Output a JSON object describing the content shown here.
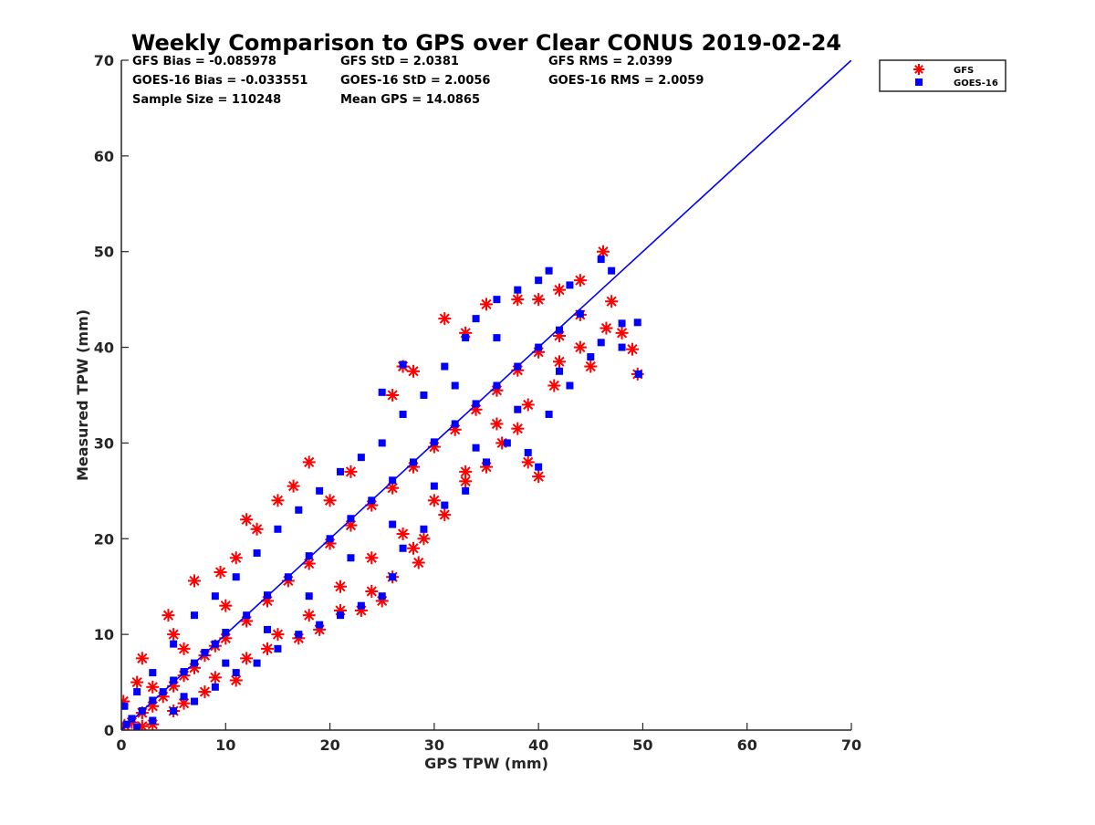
{
  "chart_data": {
    "type": "scatter",
    "title": "Weekly Comparison to GPS over Clear CONUS 2019-02-24",
    "xlabel": "GPS TPW (mm)",
    "ylabel": "Measured TPW (mm)",
    "xlim": [
      0,
      70
    ],
    "ylim": [
      0,
      70
    ],
    "xticks": [
      0,
      10,
      20,
      30,
      40,
      50,
      60,
      70
    ],
    "yticks": [
      0,
      10,
      20,
      30,
      40,
      50,
      60,
      70
    ],
    "grid": false,
    "legend_position": "top-right outside",
    "stats_rows": [
      [
        "GFS Bias = -0.085978",
        "GFS StD = 2.0381",
        "GFS RMS = 2.0399"
      ],
      [
        "GOES-16 Bias = -0.033551",
        "GOES-16 StD = 2.0056",
        "GOES-16 RMS = 2.0059"
      ],
      [
        "Sample Size = 110248",
        "Mean GPS = 14.0865",
        ""
      ]
    ],
    "series": [
      {
        "name": "GFS",
        "marker": "asterisk",
        "color": "#ff0000",
        "points": [
          [
            0.3,
            0.5
          ],
          [
            1,
            0.8
          ],
          [
            2,
            1.8
          ],
          [
            3,
            2.5
          ],
          [
            4,
            3.5
          ],
          [
            5,
            4.6
          ],
          [
            6,
            5.7
          ],
          [
            7,
            6.5
          ],
          [
            8,
            7.8
          ],
          [
            9,
            8.8
          ],
          [
            10,
            9.6
          ],
          [
            12,
            11.4
          ],
          [
            14,
            13.5
          ],
          [
            16,
            15.6
          ],
          [
            18,
            17.4
          ],
          [
            20,
            19.5
          ],
          [
            22,
            21.4
          ],
          [
            24,
            23.5
          ],
          [
            26,
            25.3
          ],
          [
            28,
            27.5
          ],
          [
            30,
            29.6
          ],
          [
            32,
            31.4
          ],
          [
            34,
            33.5
          ],
          [
            36,
            35.5
          ],
          [
            38,
            37.6
          ],
          [
            40,
            39.5
          ],
          [
            42,
            41.2
          ],
          [
            44,
            43.4
          ],
          [
            0.2,
            3
          ],
          [
            1.5,
            5
          ],
          [
            2,
            7.5
          ],
          [
            4.5,
            12
          ],
          [
            5,
            10
          ],
          [
            7,
            15.6
          ],
          [
            9.5,
            16.5
          ],
          [
            11,
            18
          ],
          [
            12,
            22
          ],
          [
            13,
            21
          ],
          [
            15,
            24
          ],
          [
            16.5,
            25.5
          ],
          [
            18,
            28
          ],
          [
            26,
            35
          ],
          [
            27,
            38
          ],
          [
            28,
            37.5
          ],
          [
            31,
            43
          ],
          [
            33,
            41.5
          ],
          [
            35,
            44.5
          ],
          [
            38,
            45
          ],
          [
            40,
            45
          ],
          [
            42,
            46
          ],
          [
            44,
            47
          ],
          [
            46.2,
            50
          ],
          [
            47,
            44.8
          ],
          [
            48,
            41.5
          ],
          [
            49,
            39.8
          ],
          [
            49.5,
            37.2
          ],
          [
            46.5,
            42
          ],
          [
            45,
            38
          ],
          [
            41.5,
            36
          ],
          [
            40,
            26.5
          ],
          [
            39,
            28
          ],
          [
            38,
            31.5
          ],
          [
            36.5,
            30
          ],
          [
            35,
            27.5
          ],
          [
            33,
            27
          ],
          [
            31,
            22.5
          ],
          [
            29,
            20
          ],
          [
            28,
            19
          ],
          [
            28.5,
            17.5
          ],
          [
            26,
            16
          ],
          [
            24,
            14.5
          ],
          [
            25,
            13.5
          ],
          [
            23,
            12.5
          ],
          [
            21,
            12.5
          ],
          [
            19,
            10.5
          ],
          [
            17,
            9.6
          ],
          [
            14,
            8.5
          ],
          [
            11,
            5.2
          ],
          [
            8,
            4
          ],
          [
            5,
            2
          ],
          [
            2,
            0.4
          ],
          [
            3,
            0.6
          ],
          [
            6,
            2.8
          ],
          [
            9,
            5.5
          ],
          [
            12,
            7.5
          ],
          [
            15,
            10
          ],
          [
            18,
            12
          ],
          [
            21,
            15
          ],
          [
            24,
            18
          ],
          [
            27,
            20.5
          ],
          [
            30,
            24
          ],
          [
            33,
            26
          ],
          [
            36,
            32
          ],
          [
            39,
            34
          ],
          [
            42,
            38.5
          ],
          [
            44,
            40
          ],
          [
            22,
            27
          ],
          [
            20,
            24
          ],
          [
            10,
            13
          ],
          [
            6,
            8.5
          ],
          [
            3,
            4.5
          ]
        ]
      },
      {
        "name": "GOES-16",
        "marker": "square",
        "color": "#0000ff",
        "points": [
          [
            0.5,
            0.6
          ],
          [
            1,
            1.2
          ],
          [
            2,
            2
          ],
          [
            3,
            3.1
          ],
          [
            4,
            4
          ],
          [
            5,
            5.2
          ],
          [
            6,
            6.1
          ],
          [
            7,
            7
          ],
          [
            8,
            8.1
          ],
          [
            9,
            9
          ],
          [
            10,
            10.2
          ],
          [
            12,
            12
          ],
          [
            14,
            14.1
          ],
          [
            16,
            16
          ],
          [
            18,
            18.2
          ],
          [
            20,
            20
          ],
          [
            22,
            22.1
          ],
          [
            24,
            24
          ],
          [
            26,
            26.1
          ],
          [
            28,
            28
          ],
          [
            30,
            30.1
          ],
          [
            32,
            32
          ],
          [
            34,
            34.1
          ],
          [
            36,
            36
          ],
          [
            38,
            38
          ],
          [
            40,
            40
          ],
          [
            42,
            41.8
          ],
          [
            44,
            43.5
          ],
          [
            0.3,
            2.5
          ],
          [
            1.5,
            4
          ],
          [
            3,
            6
          ],
          [
            5,
            9
          ],
          [
            7,
            12
          ],
          [
            9,
            14
          ],
          [
            11,
            16
          ],
          [
            13,
            18.5
          ],
          [
            15,
            21
          ],
          [
            17,
            23
          ],
          [
            19,
            25
          ],
          [
            21,
            27
          ],
          [
            23,
            28.5
          ],
          [
            25,
            30
          ],
          [
            27,
            33
          ],
          [
            29,
            35
          ],
          [
            31,
            38
          ],
          [
            33,
            41
          ],
          [
            34,
            43
          ],
          [
            36,
            45
          ],
          [
            38,
            46
          ],
          [
            40,
            47
          ],
          [
            41,
            48
          ],
          [
            43,
            46.5
          ],
          [
            46,
            49.2
          ],
          [
            47,
            48
          ],
          [
            48,
            42.5
          ],
          [
            49.5,
            42.6
          ],
          [
            46,
            40.5
          ],
          [
            48,
            40
          ],
          [
            45,
            39
          ],
          [
            49.6,
            37.2
          ],
          [
            43,
            36
          ],
          [
            41,
            33
          ],
          [
            40,
            27.5
          ],
          [
            39,
            29
          ],
          [
            37,
            30
          ],
          [
            35,
            28
          ],
          [
            33,
            25
          ],
          [
            31,
            23.5
          ],
          [
            29,
            21
          ],
          [
            27,
            19
          ],
          [
            26,
            16
          ],
          [
            25,
            14
          ],
          [
            23,
            13
          ],
          [
            21,
            12
          ],
          [
            19,
            11
          ],
          [
            17,
            10
          ],
          [
            15,
            8.5
          ],
          [
            13,
            7
          ],
          [
            11,
            6
          ],
          [
            9,
            4.5
          ],
          [
            7,
            3
          ],
          [
            5,
            2
          ],
          [
            3,
            1
          ],
          [
            1.5,
            0.3
          ],
          [
            6,
            3.5
          ],
          [
            10,
            7
          ],
          [
            14,
            10.5
          ],
          [
            18,
            14
          ],
          [
            22,
            18
          ],
          [
            26,
            21.5
          ],
          [
            30,
            25.5
          ],
          [
            34,
            29.5
          ],
          [
            38,
            33.5
          ],
          [
            42,
            37.5
          ],
          [
            25,
            35.3
          ],
          [
            27,
            38.2
          ],
          [
            32,
            36
          ],
          [
            36,
            41
          ]
        ]
      }
    ],
    "reference_line": {
      "from": [
        0,
        0
      ],
      "to": [
        70,
        70
      ],
      "color": "#0000ff"
    }
  }
}
